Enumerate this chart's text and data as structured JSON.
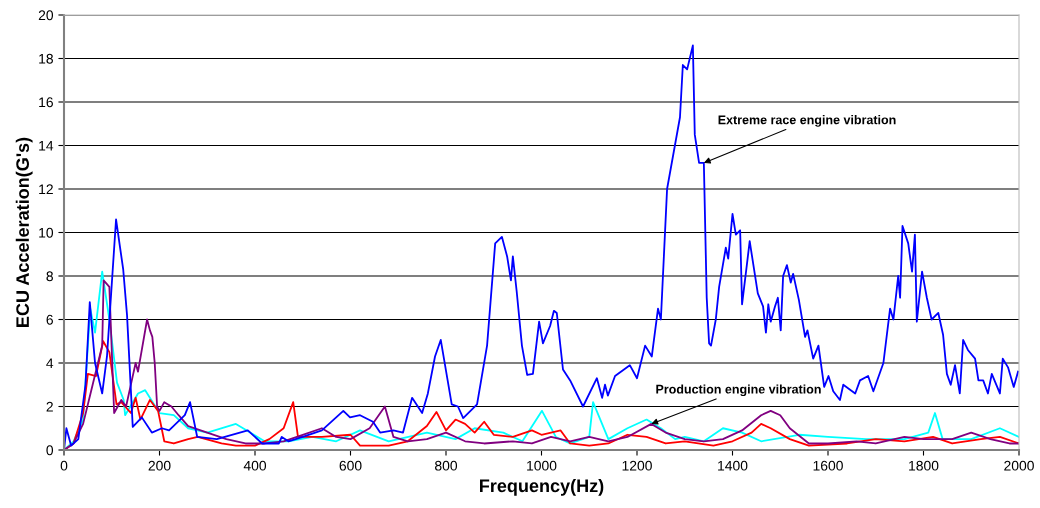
{
  "chart_data": {
    "type": "line",
    "xlabel": "Frequency(Hz)",
    "ylabel": "ECU Acceleration(G's)",
    "xlim": [
      0,
      2000
    ],
    "xticks": [
      0,
      200,
      400,
      600,
      800,
      1000,
      1200,
      1400,
      1600,
      1800,
      2000
    ],
    "ylim": [
      0,
      20
    ],
    "yticks": [
      0,
      2,
      4,
      6,
      8,
      10,
      12,
      14,
      16,
      18,
      20
    ],
    "grid": "y",
    "marker": "none",
    "line_style": "solid",
    "annotations": [
      {
        "text": "Extreme race engine vibration",
        "x": 1340,
        "y": 13.2
      },
      {
        "text": "Production engine vibration",
        "x": 1230,
        "y": 1.2
      }
    ],
    "series": [
      {
        "color": "#00ffff",
        "x": [
          0,
          20,
          40,
          55,
          65,
          80,
          95,
          111,
          125,
          128,
          155,
          170,
          200,
          230,
          260,
          300,
          360,
          390,
          420,
          470,
          520,
          570,
          620,
          680,
          760,
          820,
          860,
          920,
          960,
          1001,
          1030,
          1060,
          1100,
          1108,
          1140,
          1180,
          1220,
          1250,
          1280,
          1300,
          1340,
          1380,
          1420,
          1460,
          1540,
          1600,
          1680,
          1760,
          1810,
          1824,
          1840,
          1900,
          1960,
          2000
        ],
        "values": [
          0,
          0.4,
          1.4,
          6.5,
          5.4,
          8.2,
          6.0,
          3.1,
          2.3,
          1.6,
          2.6,
          2.75,
          1.7,
          1.6,
          1.0,
          0.8,
          1.2,
          0.8,
          0.4,
          0.4,
          0.6,
          0.4,
          0.9,
          0.4,
          0.8,
          0.5,
          1.0,
          0.8,
          0.4,
          1.8,
          0.6,
          0.3,
          0.6,
          2.2,
          0.5,
          1.0,
          1.4,
          1.0,
          0.5,
          0.6,
          0.4,
          1.0,
          0.8,
          0.4,
          0.7,
          0.6,
          0.5,
          0.5,
          0.8,
          1.7,
          0.5,
          0.5,
          1.0,
          0.6
        ]
      },
      {
        "color": "#ff0000",
        "x": [
          0,
          20,
          40,
          50,
          67,
          82,
          95,
          110,
          120,
          140,
          150,
          160,
          180,
          197,
          210,
          230,
          260,
          280,
          330,
          360,
          400,
          430,
          460,
          480,
          490,
          540,
          600,
          620,
          680,
          720,
          760,
          780,
          800,
          820,
          840,
          860,
          880,
          900,
          940,
          980,
          1000,
          1040,
          1060,
          1100,
          1140,
          1180,
          1220,
          1260,
          1300,
          1360,
          1400,
          1440,
          1460,
          1480,
          1520,
          1560,
          1640,
          1700,
          1760,
          1820,
          1860,
          1920,
          1960,
          2000
        ],
        "values": [
          0,
          0.3,
          1.7,
          3.5,
          3.4,
          5.0,
          4.5,
          2.1,
          2.2,
          1.7,
          2.4,
          1.4,
          2.3,
          1.8,
          0.4,
          0.3,
          0.5,
          0.6,
          0.3,
          0.2,
          0.2,
          0.5,
          1.0,
          2.2,
          0.6,
          0.6,
          0.7,
          0.2,
          0.2,
          0.4,
          1.1,
          1.75,
          0.9,
          1.4,
          1.2,
          0.8,
          1.3,
          0.7,
          0.6,
          0.9,
          0.7,
          0.9,
          0.3,
          0.2,
          0.3,
          0.7,
          0.6,
          0.3,
          0.4,
          0.2,
          0.4,
          0.8,
          1.2,
          1.0,
          0.5,
          0.2,
          0.3,
          0.5,
          0.4,
          0.6,
          0.3,
          0.5,
          0.6,
          0.3
        ]
      },
      {
        "color": "#800080",
        "x": [
          0,
          20,
          40,
          60,
          80,
          83,
          95,
          105,
          120,
          130,
          145,
          150,
          155,
          174,
          180,
          185,
          190,
          195,
          200,
          210,
          225,
          240,
          260,
          300,
          340,
          380,
          420,
          460,
          500,
          540,
          570,
          600,
          640,
          672,
          690,
          720,
          760,
          800,
          840,
          880,
          940,
          980,
          1020,
          1060,
          1100,
          1140,
          1180,
          1230,
          1260,
          1300,
          1340,
          1380,
          1420,
          1460,
          1480,
          1500,
          1520,
          1560,
          1600,
          1660,
          1700,
          1760,
          1800,
          1860,
          1900,
          1940,
          1980,
          2000
        ],
        "values": [
          0,
          0.3,
          1.2,
          3.0,
          4.8,
          7.8,
          7.5,
          1.7,
          2.3,
          2.0,
          3.5,
          4.0,
          3.6,
          6.0,
          5.5,
          5.2,
          4.0,
          2.0,
          1.8,
          2.2,
          2.0,
          1.6,
          1.1,
          0.8,
          0.5,
          0.3,
          0.3,
          0.4,
          0.7,
          1.0,
          0.6,
          0.5,
          1.0,
          2.0,
          0.6,
          0.4,
          0.5,
          0.8,
          0.4,
          0.3,
          0.4,
          0.3,
          0.6,
          0.4,
          0.6,
          0.4,
          0.6,
          1.2,
          0.8,
          0.5,
          0.4,
          0.5,
          0.9,
          1.6,
          1.8,
          1.6,
          1.0,
          0.3,
          0.3,
          0.4,
          0.3,
          0.6,
          0.5,
          0.5,
          0.8,
          0.5,
          0.3,
          0.3
        ]
      },
      {
        "color": "#0000ff",
        "x": [
          0,
          5,
          15,
          30,
          45,
          54,
          65,
          80,
          90,
          109,
          124,
          132,
          144,
          163,
          184,
          205,
          220,
          253,
          264,
          279,
          320,
          385,
          415,
          450,
          456,
          470,
          500,
          540,
          585,
          599,
          620,
          647,
          662,
          690,
          710,
          729,
          750,
          762,
          777,
          789,
          798,
          812,
          825,
          836,
          865,
          886,
          903,
          917,
          928,
          936,
          940,
          948,
          959,
          970,
          982,
          995,
          1003,
          1018,
          1026,
          1032,
          1045,
          1060,
          1087,
          1116,
          1127,
          1133,
          1139,
          1154,
          1185,
          1200,
          1217,
          1231,
          1244,
          1250,
          1263,
          1290,
          1296,
          1305,
          1317,
          1321,
          1330,
          1340,
          1346,
          1351,
          1355,
          1365,
          1372,
          1386,
          1391,
          1400,
          1407,
          1416,
          1420,
          1430,
          1436,
          1453,
          1464,
          1470,
          1475,
          1480,
          1489,
          1495,
          1501,
          1506,
          1514,
          1522,
          1527,
          1539,
          1552,
          1557,
          1569,
          1580,
          1592,
          1601,
          1611,
          1625,
          1632,
          1657,
          1667,
          1684,
          1695,
          1716,
          1730,
          1737,
          1747,
          1751,
          1756,
          1768,
          1776,
          1782,
          1786,
          1797,
          1807,
          1817,
          1831,
          1841,
          1849,
          1857,
          1866,
          1876,
          1883,
          1893,
          1908,
          1915,
          1925,
          1935,
          1943,
          1960,
          1966,
          1977,
          1989,
          1998
        ],
        "values": [
          0,
          1.0,
          0.2,
          0.5,
          3.0,
          6.8,
          4.0,
          2.6,
          4.3,
          10.6,
          8.3,
          6.2,
          1.06,
          1.5,
          0.8,
          1.0,
          0.9,
          1.6,
          2.2,
          0.6,
          0.5,
          0.9,
          0.3,
          0.3,
          0.6,
          0.4,
          0.6,
          0.9,
          1.8,
          1.5,
          1.6,
          1.3,
          0.8,
          0.9,
          0.8,
          2.4,
          1.7,
          2.6,
          4.3,
          5.06,
          3.9,
          2.1,
          2.0,
          1.47,
          2.1,
          4.8,
          9.5,
          9.8,
          8.9,
          7.8,
          8.9,
          7.3,
          4.8,
          3.45,
          3.5,
          5.9,
          4.9,
          5.7,
          6.4,
          6.3,
          3.7,
          3.2,
          2.0,
          3.3,
          2.4,
          3.0,
          2.5,
          3.4,
          3.9,
          3.3,
          4.8,
          4.3,
          6.5,
          6.0,
          12.0,
          15.3,
          17.7,
          17.5,
          18.6,
          14.5,
          13.2,
          13.2,
          7.0,
          4.9,
          4.8,
          6.0,
          7.5,
          9.3,
          8.8,
          10.85,
          9.9,
          10.1,
          6.7,
          8.5,
          9.6,
          7.2,
          6.6,
          5.4,
          6.7,
          5.9,
          6.6,
          7.0,
          5.5,
          8.0,
          8.5,
          7.7,
          8.1,
          6.9,
          5.2,
          5.5,
          4.2,
          4.8,
          2.9,
          3.4,
          2.7,
          2.3,
          3.0,
          2.6,
          3.2,
          3.4,
          2.7,
          4.0,
          6.5,
          6.0,
          8.0,
          7.0,
          10.3,
          9.5,
          8.2,
          9.9,
          5.9,
          8.2,
          7.0,
          6.0,
          6.3,
          5.3,
          3.5,
          3.0,
          3.9,
          2.6,
          5.06,
          4.6,
          4.2,
          3.2,
          3.2,
          2.6,
          3.5,
          2.6,
          4.2,
          3.8,
          2.9,
          3.6
        ]
      }
    ]
  }
}
